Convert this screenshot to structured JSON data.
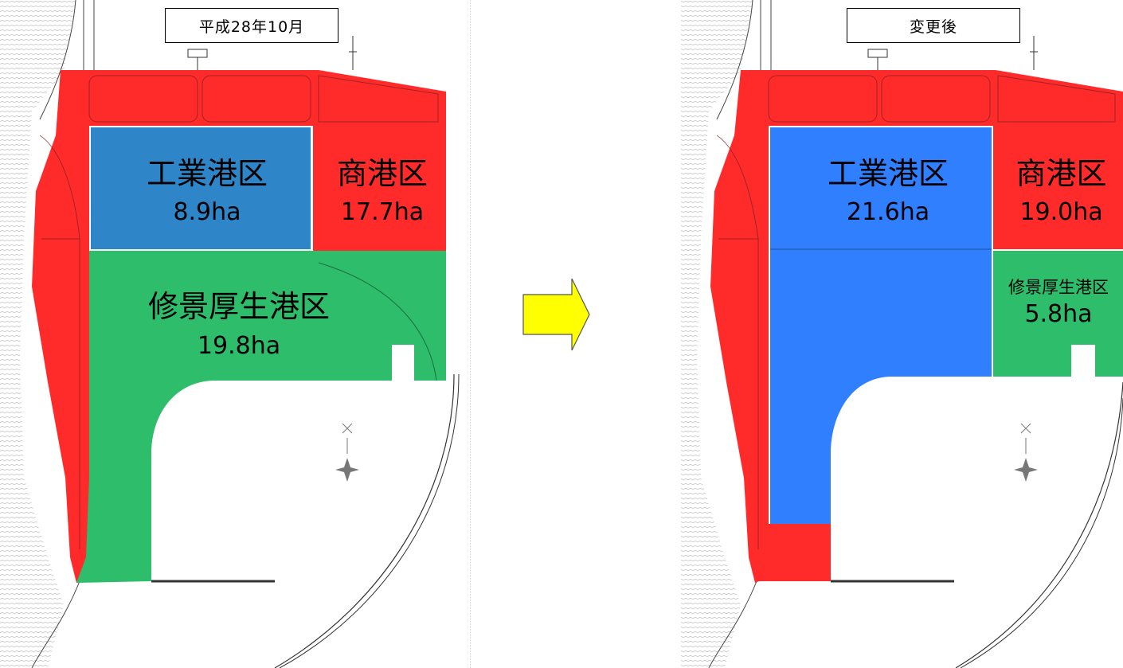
{
  "before_panel": {
    "title": "平成28年10月",
    "zones": {
      "industrial": {
        "name": "工業港区",
        "area": "8.9ha"
      },
      "commercial": {
        "name": "商港区",
        "area": "17.7ha"
      },
      "amenity": {
        "name": "修景厚生港区",
        "area": "19.8ha"
      }
    }
  },
  "after_panel": {
    "title": "変更後",
    "zones": {
      "industrial": {
        "name": "工業港区",
        "area": "21.6ha"
      },
      "commercial": {
        "name": "商港区",
        "area": "19.0ha"
      },
      "amenity": {
        "name": "修景厚生港区",
        "area": "5.8ha"
      }
    }
  },
  "colors": {
    "commercial": "#ff2b2b",
    "industrial_before": "#2e86c8",
    "industrial_after": "#2f7fff",
    "amenity": "#2dbd6b",
    "arrow": "#ffff00"
  }
}
